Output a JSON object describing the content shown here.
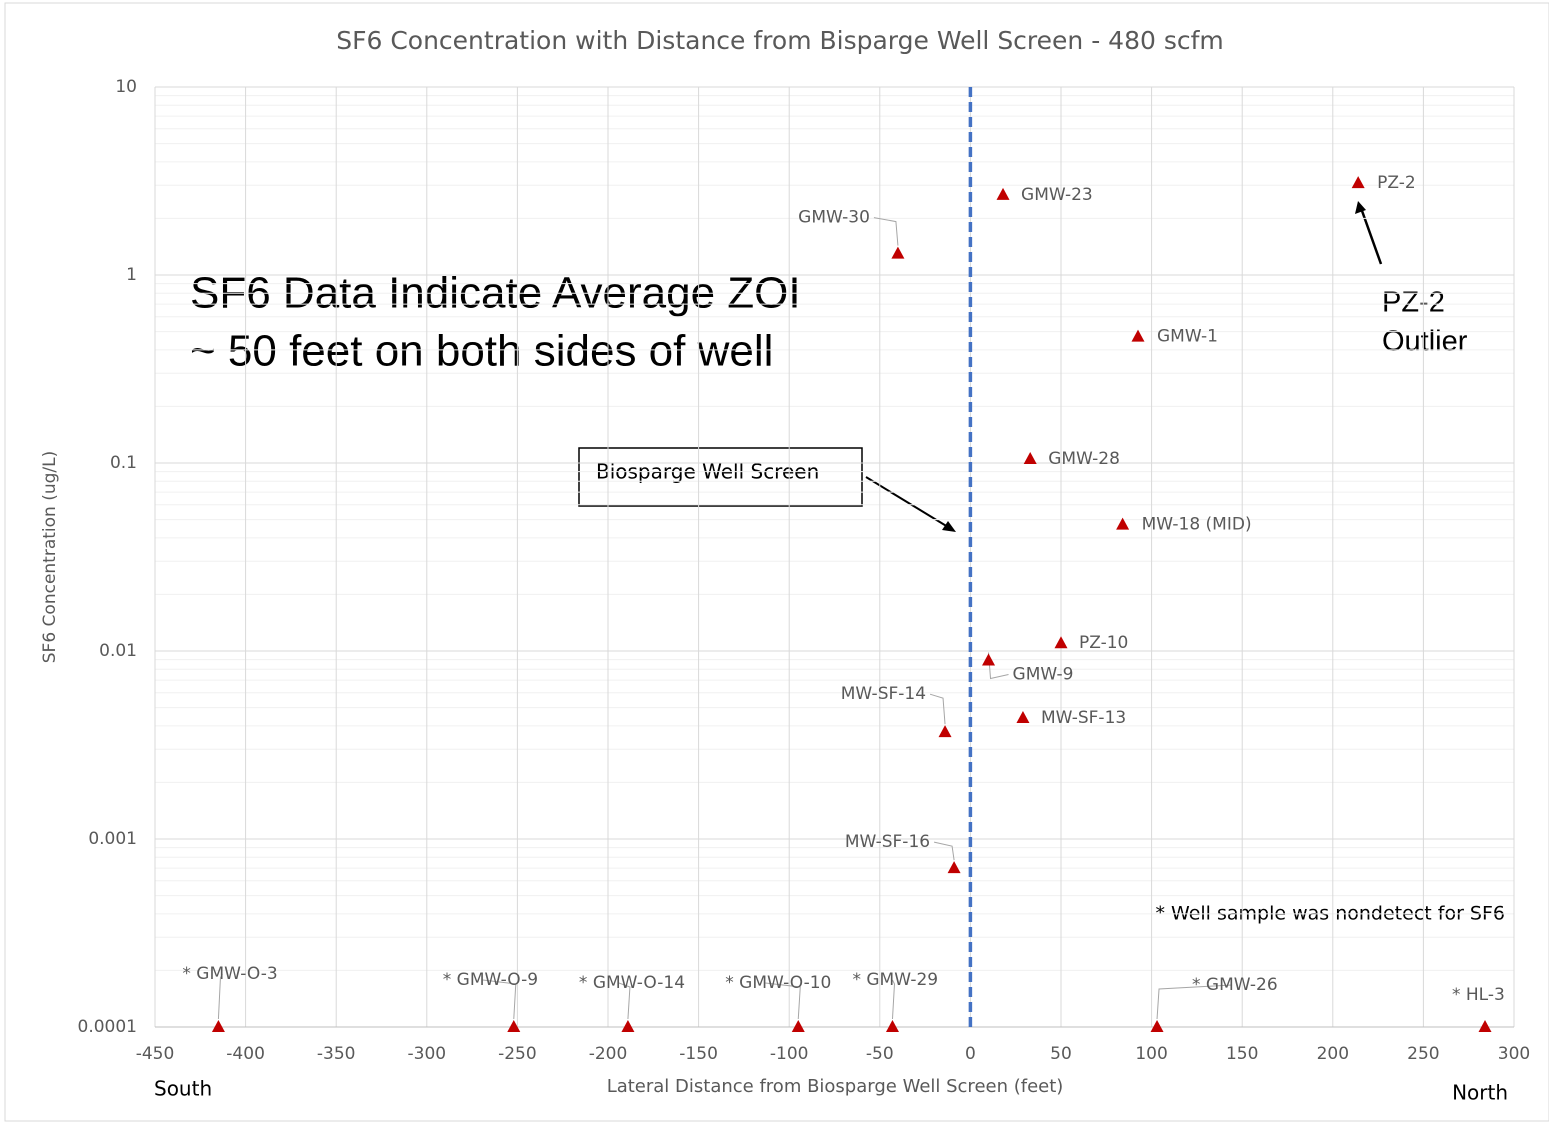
{
  "chart_data": {
    "type": "scatter",
    "title": "SF6 Concentration with Distance from Bisparge Well Screen - 480 scfm",
    "xlabel": "Lateral Distance from Biosparge Well Screen (feet)",
    "ylabel": "SF6 Concentration (ug/L)",
    "xlim": [
      -450,
      300
    ],
    "xticks": [
      -450,
      -400,
      -350,
      -300,
      -250,
      -200,
      -150,
      -100,
      -50,
      0,
      50,
      100,
      150,
      200,
      250,
      300
    ],
    "ylim": [
      0.0001,
      10
    ],
    "yticks": [
      0.0001,
      0.001,
      0.01,
      0.1,
      1,
      10
    ],
    "ylog": true,
    "grid": true,
    "series": [
      {
        "color": "#c00000",
        "x": [
          -40,
          18,
          214,
          92.5,
          33,
          84,
          50,
          10,
          29,
          -14,
          -9,
          -415,
          -252,
          -189,
          -95,
          -43,
          103,
          284
        ],
        "values": [
          1.3,
          2.67,
          3.08,
          0.47,
          0.105,
          0.047,
          0.011,
          0.0089,
          0.0044,
          0.0037,
          0.0007,
          0.0001,
          0.0001,
          0.0001,
          0.0001,
          0.0001,
          0.0001,
          0.0001
        ],
        "point_labels": [
          "GMW-30",
          "GMW-23",
          "PZ-2",
          "GMW-1",
          "GMW-28",
          "MW-18 (MID)",
          "PZ-10",
          "GMW-9",
          "MW-SF-13",
          "MW-SF-14",
          "MW-SF-16",
          "* GMW-O-3",
          "* GMW-O-9",
          "* GMW-O-14",
          "* GMW-O-10",
          "* GMW-29",
          "* GMW-26",
          "* HL-3"
        ]
      }
    ],
    "well_screen_x": 0,
    "well_screen_label": "Biosparge Well Screen",
    "zoi_note": [
      "SF6 Data Indicate Average ZOI",
      "~ 50 feet on both sides of well"
    ],
    "outlier_note": [
      "PZ-2",
      "Outlier"
    ],
    "nondetect_note": "* Well sample was nondetect for SF6",
    "south_label": "South",
    "north_label": "North"
  }
}
